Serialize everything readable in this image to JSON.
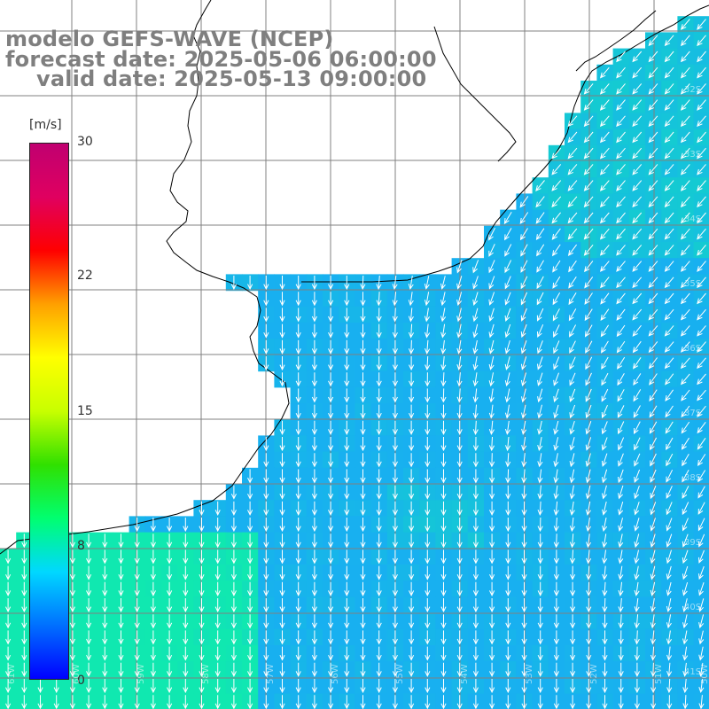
{
  "title": {
    "line1": "modelo GEFS-WAVE (NCEP)",
    "line2": "forecast date: 2025-05-06 06:00:00",
    "line3": "valid date: 2025-05-13 09:00:00"
  },
  "colorbar": {
    "unit": "[m/s]",
    "ticks": [
      "30",
      "22",
      "15",
      "8",
      "0"
    ],
    "min": 0,
    "max": 30,
    "colors": [
      "#0000ff",
      "#0070ff",
      "#00d8ff",
      "#00ff70",
      "#30e000",
      "#c8ff00",
      "#ffff00",
      "#ffa000",
      "#ff0000",
      "#e00060",
      "#c00070"
    ]
  },
  "map": {
    "land_color": "#ffffff",
    "ocean_color": "#1ab8ee",
    "grid_color": "#808080",
    "coast_color": "#000000",
    "arrow_color": "#ffffff",
    "lat_labels": [
      "32S",
      "33S",
      "34S",
      "35S",
      "36S",
      "37S",
      "38S",
      "39S",
      "40S",
      "41S"
    ],
    "lon_labels": [
      "61W",
      "60W",
      "59W",
      "58W",
      "57W",
      "56W",
      "55W",
      "54W",
      "53W",
      "52W",
      "51W",
      "50W"
    ]
  },
  "wind": {
    "direction": "from north-east, deflecting southward",
    "typical_speed_ms": 8.5
  }
}
